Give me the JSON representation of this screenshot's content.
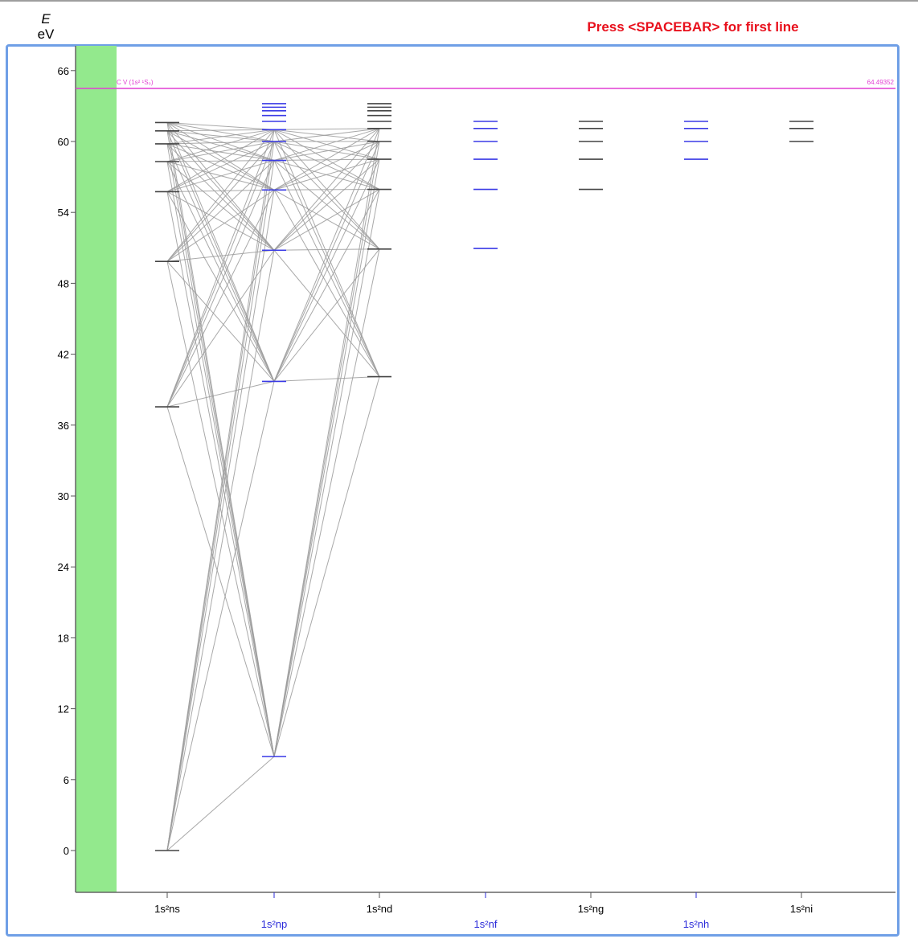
{
  "header": {
    "energy_symbol": "E",
    "energy_unit": "eV",
    "hint": "Press <SPACEBAR> for first line"
  },
  "colors": {
    "frame": "#6f9fe6",
    "green_band": "#93e98d",
    "ionization": "#e23fd3",
    "black_level": "#444444",
    "blue_level": "#3a3ae6",
    "transition": "#9a9a9a",
    "hint": "#e8101c",
    "blue_label": "#2b2bd9"
  },
  "ionization": {
    "label": "C V (1s² ¹S₀)",
    "value_text": "64.49352",
    "energy": 64.49352
  },
  "chart_data": {
    "type": "grotrian",
    "y_axis": {
      "label": "E",
      "unit": "eV",
      "ticks": [
        0,
        6,
        12,
        18,
        24,
        30,
        36,
        42,
        48,
        54,
        60,
        66
      ],
      "range": [
        -3.5,
        68.5
      ]
    },
    "columns": [
      {
        "label": "1s²ns",
        "color": "black",
        "levels": [
          0,
          37.55,
          49.85,
          55.75,
          58.3,
          59.8,
          60.9,
          61.6
        ]
      },
      {
        "label": "1s²np",
        "color": "blue",
        "levels": [
          7.95,
          39.7,
          50.8,
          55.9,
          58.4,
          60.0,
          61.0,
          61.7,
          62.2,
          62.6,
          62.9,
          63.2
        ]
      },
      {
        "label": "1s²nd",
        "color": "black",
        "levels": [
          40.1,
          50.9,
          55.95,
          58.5,
          60.0,
          61.1,
          61.7,
          62.2,
          62.6,
          62.9,
          63.2
        ]
      },
      {
        "label": "1s²nf",
        "color": "blue",
        "levels": [
          50.95,
          55.95,
          58.5,
          60.0,
          61.1,
          61.7
        ]
      },
      {
        "label": "1s²ng",
        "color": "black",
        "levels": [
          55.95,
          58.5,
          60.0,
          61.1,
          61.7
        ]
      },
      {
        "label": "1s²nh",
        "color": "blue",
        "levels": [
          58.5,
          60.0,
          61.1,
          61.7
        ]
      },
      {
        "label": "1s²ni",
        "color": "black",
        "levels": [
          60.0,
          61.1,
          61.7
        ]
      }
    ]
  }
}
